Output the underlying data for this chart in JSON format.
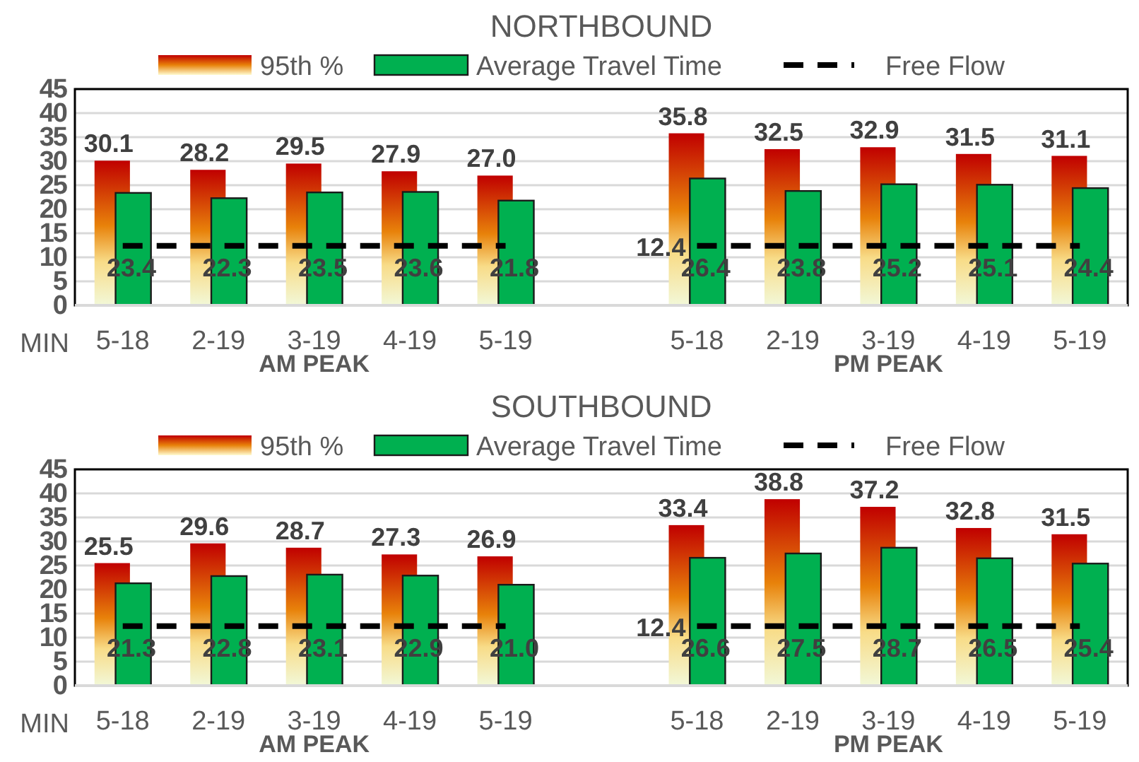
{
  "chart_data": [
    {
      "type": "bar",
      "title": "NORTHBOUND",
      "ylabel": "MIN",
      "categories": [
        "5-18",
        "2-19",
        "3-19",
        "4-19",
        "5-19",
        null,
        "5-18",
        "2-19",
        "3-19",
        "4-19",
        "5-19"
      ],
      "series": [
        {
          "name": "95th %",
          "color": "#c00000",
          "values": [
            30.1,
            28.2,
            29.5,
            27.9,
            27.0,
            null,
            35.8,
            32.5,
            32.9,
            31.5,
            31.1
          ],
          "value_labels": [
            "30.1",
            "28.2",
            "29.5",
            "27.9",
            "27.0",
            null,
            "35.8",
            "32.5",
            "32.9",
            "31.5",
            "31.1"
          ]
        },
        {
          "name": "Average Travel Time",
          "color": "#00b050",
          "values": [
            23.4,
            22.3,
            23.5,
            23.6,
            21.8,
            null,
            26.4,
            23.8,
            25.2,
            25.1,
            24.4
          ],
          "value_labels": [
            "23.4",
            "22.3",
            "23.5",
            "23.6",
            "21.8",
            null,
            "26.4",
            "23.8",
            "25.2",
            "25.1",
            "24.4"
          ]
        },
        {
          "name": "Free Flow",
          "type": "line",
          "color": "#000000",
          "line_style": "dashed",
          "marker": "none",
          "values": [
            12.4,
            12.4,
            12.4,
            12.4,
            12.4,
            null,
            12.4,
            12.4,
            12.4,
            12.4,
            12.4
          ],
          "value_labels": [
            null,
            null,
            null,
            null,
            null,
            null,
            "12.4",
            null,
            null,
            null,
            null
          ]
        }
      ],
      "ylim": [
        0,
        45
      ],
      "yticks": [
        0,
        5,
        10,
        15,
        20,
        25,
        30,
        35,
        40,
        45
      ],
      "grid": "y",
      "legend": "top",
      "annotations": [
        "AM PEAK",
        "PM PEAK"
      ]
    },
    {
      "type": "bar",
      "title": "SOUTHBOUND",
      "ylabel": "MIN",
      "categories": [
        "5-18",
        "2-19",
        "3-19",
        "4-19",
        "5-19",
        null,
        "5-18",
        "2-19",
        "3-19",
        "4-19",
        "5-19"
      ],
      "series": [
        {
          "name": "95th %",
          "color": "#c00000",
          "values": [
            25.5,
            29.6,
            28.7,
            27.3,
            26.9,
            null,
            33.4,
            38.8,
            37.2,
            32.8,
            31.5
          ],
          "value_labels": [
            "25.5",
            "29.6",
            "28.7",
            "27.3",
            "26.9",
            null,
            "33.4",
            "38.8",
            "37.2",
            "32.8",
            "31.5"
          ]
        },
        {
          "name": "Average Travel Time",
          "color": "#00b050",
          "values": [
            21.3,
            22.8,
            23.1,
            22.9,
            21.0,
            null,
            26.6,
            27.5,
            28.7,
            26.5,
            25.4
          ],
          "value_labels": [
            "21.3",
            "22.8",
            "23.1",
            "22.9",
            "21.0",
            null,
            "26.6",
            "27.5",
            "28.7",
            "26.5",
            "25.4"
          ]
        },
        {
          "name": "Free Flow",
          "type": "line",
          "color": "#000000",
          "line_style": "dashed",
          "marker": "none",
          "values": [
            12.4,
            12.4,
            12.4,
            12.4,
            12.4,
            null,
            12.4,
            12.4,
            12.4,
            12.4,
            12.4
          ],
          "value_labels": [
            null,
            null,
            null,
            null,
            null,
            null,
            "12.4",
            null,
            null,
            null,
            null
          ]
        }
      ],
      "ylim": [
        0,
        45
      ],
      "yticks": [
        0,
        5,
        10,
        15,
        20,
        25,
        30,
        35,
        40,
        45
      ],
      "grid": "y",
      "legend": "top",
      "annotations": [
        "AM PEAK",
        "PM PEAK"
      ]
    }
  ]
}
